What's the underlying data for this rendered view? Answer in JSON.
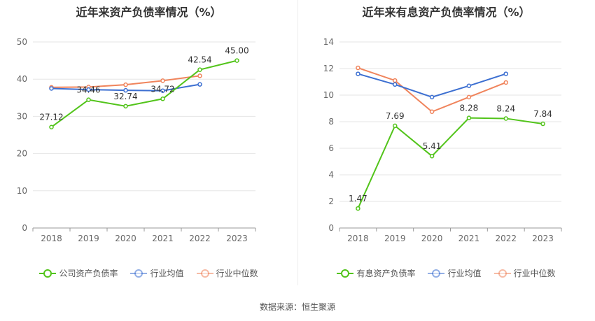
{
  "source_label": "数据来源：恒生聚源",
  "chart_data": [
    {
      "type": "line",
      "title": "近年来资产负债率情况（%）",
      "xlabel": "",
      "ylabel": "",
      "categories": [
        "2018",
        "2019",
        "2020",
        "2021",
        "2022",
        "2023"
      ],
      "ylim": [
        0,
        50
      ],
      "yticks": [
        0,
        10,
        20,
        30,
        40,
        50
      ],
      "grid": true,
      "legend_position": "bottom",
      "series": [
        {
          "name": "公司资产负债率",
          "color": "#52c41a",
          "values": [
            27.12,
            34.46,
            32.74,
            34.72,
            42.54,
            45.0
          ],
          "labels": [
            "27.12",
            "34.46",
            "32.74",
            "34.72",
            "42.54",
            "45.00"
          ]
        },
        {
          "name": "行业均值",
          "color": "#3c6fd1",
          "values": [
            37.5,
            37.2,
            37.0,
            36.9,
            38.6,
            null
          ],
          "labels": null
        },
        {
          "name": "行业中位数",
          "color": "#f0845c",
          "values": [
            37.8,
            37.9,
            38.5,
            39.6,
            40.9,
            null
          ],
          "labels": null
        }
      ]
    },
    {
      "type": "line",
      "title": "近年来有息资产负债率情况（%）",
      "xlabel": "",
      "ylabel": "",
      "categories": [
        "2018",
        "2019",
        "2020",
        "2021",
        "2022",
        "2023"
      ],
      "ylim": [
        0,
        14
      ],
      "yticks": [
        0,
        2,
        4,
        6,
        8,
        10,
        12,
        14
      ],
      "grid": true,
      "legend_position": "bottom",
      "series": [
        {
          "name": "有息资产负债率",
          "color": "#52c41a",
          "values": [
            1.47,
            7.69,
            5.41,
            8.28,
            8.24,
            7.84
          ],
          "labels": [
            "1.47",
            "7.69",
            "5.41",
            "8.28",
            "8.24",
            "7.84"
          ]
        },
        {
          "name": "行业均值",
          "color": "#3c6fd1",
          "values": [
            11.6,
            10.8,
            9.85,
            10.7,
            11.6,
            null
          ],
          "labels": null
        },
        {
          "name": "行业中位数",
          "color": "#f0845c",
          "values": [
            12.05,
            11.1,
            8.75,
            9.85,
            10.95,
            null
          ],
          "labels": null
        }
      ]
    }
  ]
}
